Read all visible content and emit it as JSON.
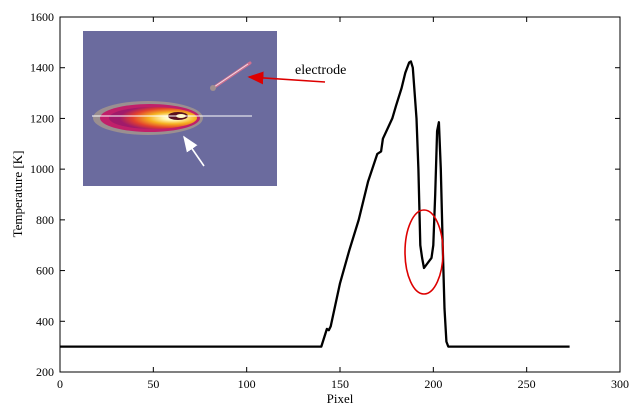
{
  "chart_data": {
    "type": "line",
    "xlabel": "Pixel",
    "ylabel": "Temperature [K]",
    "xlim": [
      0,
      300
    ],
    "ylim": [
      200,
      1600
    ],
    "x_ticks": [
      0,
      50,
      100,
      150,
      200,
      250,
      300
    ],
    "y_ticks": [
      200,
      400,
      600,
      800,
      1000,
      1200,
      1400,
      1600
    ],
    "grid": false,
    "series": [
      {
        "color": "#000000",
        "points": [
          [
            0,
            300
          ],
          [
            140,
            300
          ],
          [
            143,
            370
          ],
          [
            144,
            365
          ],
          [
            145,
            380
          ],
          [
            150,
            550
          ],
          [
            155,
            680
          ],
          [
            160,
            800
          ],
          [
            165,
            950
          ],
          [
            170,
            1060
          ],
          [
            172,
            1070
          ],
          [
            173,
            1120
          ],
          [
            178,
            1200
          ],
          [
            180,
            1250
          ],
          [
            183,
            1320
          ],
          [
            185,
            1380
          ],
          [
            187,
            1420
          ],
          [
            188,
            1425
          ],
          [
            189,
            1400
          ],
          [
            191,
            1200
          ],
          [
            192,
            1000
          ],
          [
            193,
            700
          ],
          [
            194,
            650
          ],
          [
            195,
            610
          ],
          [
            197,
            630
          ],
          [
            199,
            650
          ],
          [
            200,
            700
          ],
          [
            201,
            900
          ],
          [
            202,
            1150
          ],
          [
            203,
            1185
          ],
          [
            204,
            1000
          ],
          [
            205,
            700
          ],
          [
            206,
            450
          ],
          [
            207,
            320
          ],
          [
            208,
            300
          ],
          [
            273,
            300
          ]
        ]
      }
    ],
    "annotations": [
      {
        "text": "electrode",
        "arrow_color": "#dd0000"
      }
    ],
    "inset": {
      "description_colors": {
        "background": "#6b6b9e",
        "plume_core": "#fff7b0",
        "plume_mid": "#f08a20",
        "plume_outer": "#c0206a",
        "edge": "#9a9a9a"
      }
    },
    "highlight_ellipse": {
      "color": "#dd0000",
      "center": [
        195,
        660
      ]
    }
  }
}
